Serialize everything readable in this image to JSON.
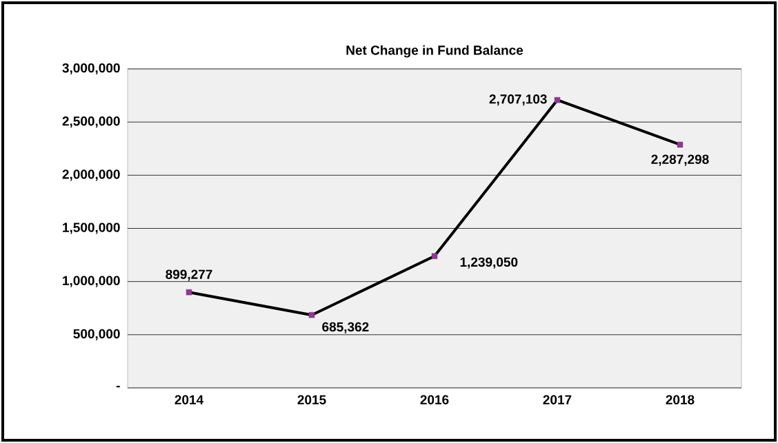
{
  "chart_data": {
    "type": "line",
    "title": "Net Change in Fund Balance",
    "categories": [
      "2014",
      "2015",
      "2016",
      "2017",
      "2018"
    ],
    "series": [
      {
        "color": "#000000",
        "colors": [
          "#993399",
          "#993399",
          "#993399",
          "#993399",
          "#993399"
        ],
        "values": [
          899277,
          685362,
          1239050,
          2707103,
          2287298
        ],
        "value_labels": [
          "899,277",
          "685,362",
          "1,239,050",
          "2,707,103",
          "2,287,298"
        ]
      }
    ],
    "ylim": [
      0,
      3000000
    ],
    "yticks": [
      {
        "value": 0,
        "label": "-"
      },
      {
        "value": 500000,
        "label": "500,000"
      },
      {
        "value": 1000000,
        "label": "1,000,000"
      },
      {
        "value": 1500000,
        "label": "1,500,000"
      },
      {
        "value": 2000000,
        "label": "2,000,000"
      },
      {
        "value": 2500000,
        "label": "2,500,000"
      },
      {
        "value": 3000000,
        "label": "3,000,000"
      }
    ],
    "grid": "y",
    "marker": "square",
    "line_style": "solid"
  }
}
